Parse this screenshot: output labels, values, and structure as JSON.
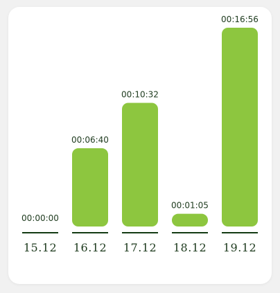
{
  "chart_data": {
    "type": "bar",
    "categories": [
      "15.12",
      "16.12",
      "17.12",
      "18.12",
      "19.12"
    ],
    "values": [
      0,
      400,
      632,
      65,
      1016
    ],
    "value_labels": [
      "00:00:00",
      "00:06:40",
      "00:10:32",
      "00:01:05",
      "00:16:56"
    ],
    "unit": "seconds",
    "title": "",
    "xlabel": "",
    "ylabel": "",
    "ylim": [
      0,
      1016
    ],
    "grid": false,
    "legend": "none",
    "colors": {
      "bar": "#8dc63f",
      "baseline": "#123a12",
      "text": "#1d3a1d"
    }
  }
}
